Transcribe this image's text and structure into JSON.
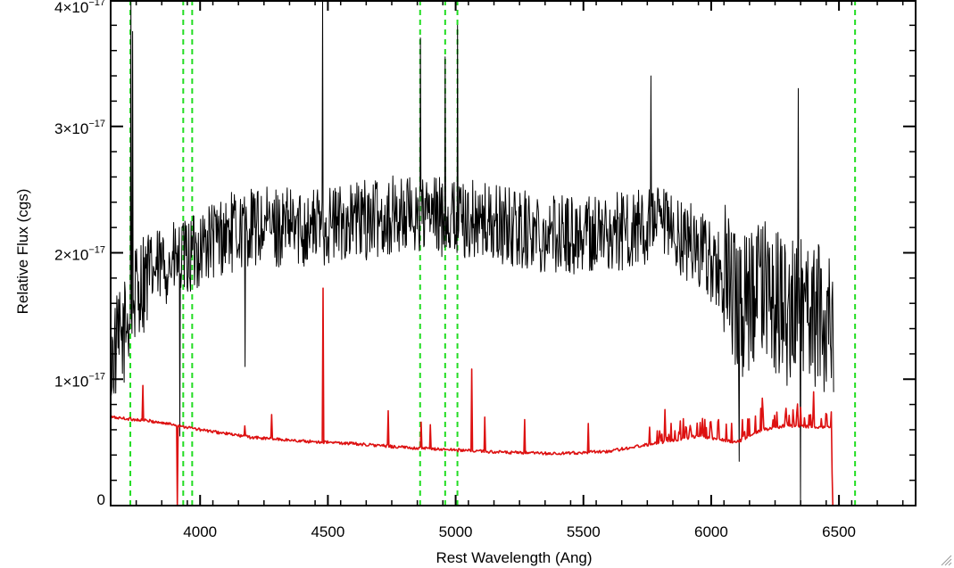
{
  "chart_data": {
    "type": "line",
    "title": "",
    "xlabel": "Rest Wavelength (Ang)",
    "ylabel": "Relative Flux (cgs)",
    "xlim": [
      3650,
      6800
    ],
    "ylim": [
      0,
      4e-17
    ],
    "x_ticks": [
      {
        "value": 4000,
        "label": "4000"
      },
      {
        "value": 4500,
        "label": "4500"
      },
      {
        "value": 5000,
        "label": "5000"
      },
      {
        "value": 5500,
        "label": "5500"
      },
      {
        "value": 6000,
        "label": "6000"
      },
      {
        "value": 6500,
        "label": "6500"
      }
    ],
    "y_ticks": [
      {
        "value": 0,
        "mantissa": "0",
        "exponent": ""
      },
      {
        "value": 1e-17,
        "mantissa": "1×10",
        "exponent": "−17"
      },
      {
        "value": 2e-17,
        "mantissa": "2×10",
        "exponent": "−17"
      },
      {
        "value": 3e-17,
        "mantissa": "3×10",
        "exponent": "−17"
      },
      {
        "value": 4e-17,
        "mantissa": "4×10",
        "exponent": "−17"
      }
    ],
    "reference_lines": {
      "color": "#22dd22",
      "style": "dashed",
      "x": [
        3727,
        3934,
        3969,
        4861,
        4959,
        5007,
        6563
      ]
    },
    "series": [
      {
        "role": "observed-spectrum",
        "color": "#000000",
        "x_range": [
          3650,
          6480
        ],
        "base_profile": [
          [
            3650,
            1.15e-17
          ],
          [
            3700,
            1.35e-17
          ],
          [
            3760,
            1.75e-17
          ],
          [
            3850,
            1.9e-17
          ],
          [
            3950,
            1.95e-17
          ],
          [
            4000,
            2.05e-17
          ],
          [
            4100,
            2.15e-17
          ],
          [
            4200,
            2.2e-17
          ],
          [
            4400,
            2.2e-17
          ],
          [
            4600,
            2.25e-17
          ],
          [
            4800,
            2.3e-17
          ],
          [
            5000,
            2.28e-17
          ],
          [
            5200,
            2.2e-17
          ],
          [
            5400,
            2.15e-17
          ],
          [
            5600,
            2.15e-17
          ],
          [
            5800,
            2.2e-17
          ],
          [
            5950,
            2.05e-17
          ],
          [
            6050,
            1.8e-17
          ],
          [
            6100,
            1.55e-17
          ],
          [
            6200,
            1.7e-17
          ],
          [
            6300,
            1.55e-17
          ],
          [
            6400,
            1.5e-17
          ],
          [
            6480,
            1.5e-17
          ]
        ],
        "spikes": [
          {
            "x": 3735,
            "y": 3.75e-17
          },
          {
            "x": 3730,
            "y": 4e-17
          },
          {
            "x": 3920,
            "y": 5.5e-18
          },
          {
            "x": 4175,
            "y": 1.1e-17
          },
          {
            "x": 4480,
            "y": 4e-17
          },
          {
            "x": 4862,
            "y": 3.7e-17
          },
          {
            "x": 4960,
            "y": 3.55e-17
          },
          {
            "x": 5007,
            "y": 3.8e-17
          },
          {
            "x": 5765,
            "y": 3.4e-17
          },
          {
            "x": 6110,
            "y": 3.5e-18
          },
          {
            "x": 6340,
            "y": 3.3e-17
          },
          {
            "x": 6350,
            "y": 0.0
          }
        ]
      },
      {
        "role": "model-spectrum",
        "color": "#dd1111",
        "x_range": [
          3650,
          6800
        ],
        "base_profile": [
          [
            3650,
            7e-18
          ],
          [
            3800,
            6.7e-18
          ],
          [
            3900,
            6.4e-18
          ],
          [
            4000,
            6e-18
          ],
          [
            4200,
            5.4e-18
          ],
          [
            4400,
            5.1e-18
          ],
          [
            4600,
            4.9e-18
          ],
          [
            4800,
            4.6e-18
          ],
          [
            5000,
            4.4e-18
          ],
          [
            5200,
            4.2e-18
          ],
          [
            5400,
            4.1e-18
          ],
          [
            5600,
            4.3e-18
          ],
          [
            5800,
            5e-18
          ],
          [
            5950,
            5.5e-18
          ],
          [
            6100,
            5e-18
          ],
          [
            6200,
            6e-18
          ],
          [
            6300,
            6.3e-18
          ],
          [
            6470,
            6.2e-18
          ],
          [
            6475,
            0.0
          ],
          [
            6800,
            0.0
          ]
        ],
        "spikes": [
          {
            "x": 3775,
            "y": 9.5e-18
          },
          {
            "x": 3912,
            "y": 0.0
          },
          {
            "x": 4175,
            "y": 6.3e-18
          },
          {
            "x": 4280,
            "y": 7.2e-18
          },
          {
            "x": 4480,
            "y": 1.72e-17
          },
          {
            "x": 4735,
            "y": 7.5e-18
          },
          {
            "x": 4865,
            "y": 6.6e-18
          },
          {
            "x": 4900,
            "y": 6.4e-18
          },
          {
            "x": 5062,
            "y": 1.08e-17
          },
          {
            "x": 5115,
            "y": 7e-18
          },
          {
            "x": 5270,
            "y": 6.8e-18
          },
          {
            "x": 5520,
            "y": 6.5e-18
          },
          {
            "x": 5760,
            "y": 6.2e-18
          },
          {
            "x": 5820,
            "y": 7.6e-18
          },
          {
            "x": 6200,
            "y": 8.5e-18
          },
          {
            "x": 6400,
            "y": 9e-18
          }
        ]
      }
    ]
  }
}
